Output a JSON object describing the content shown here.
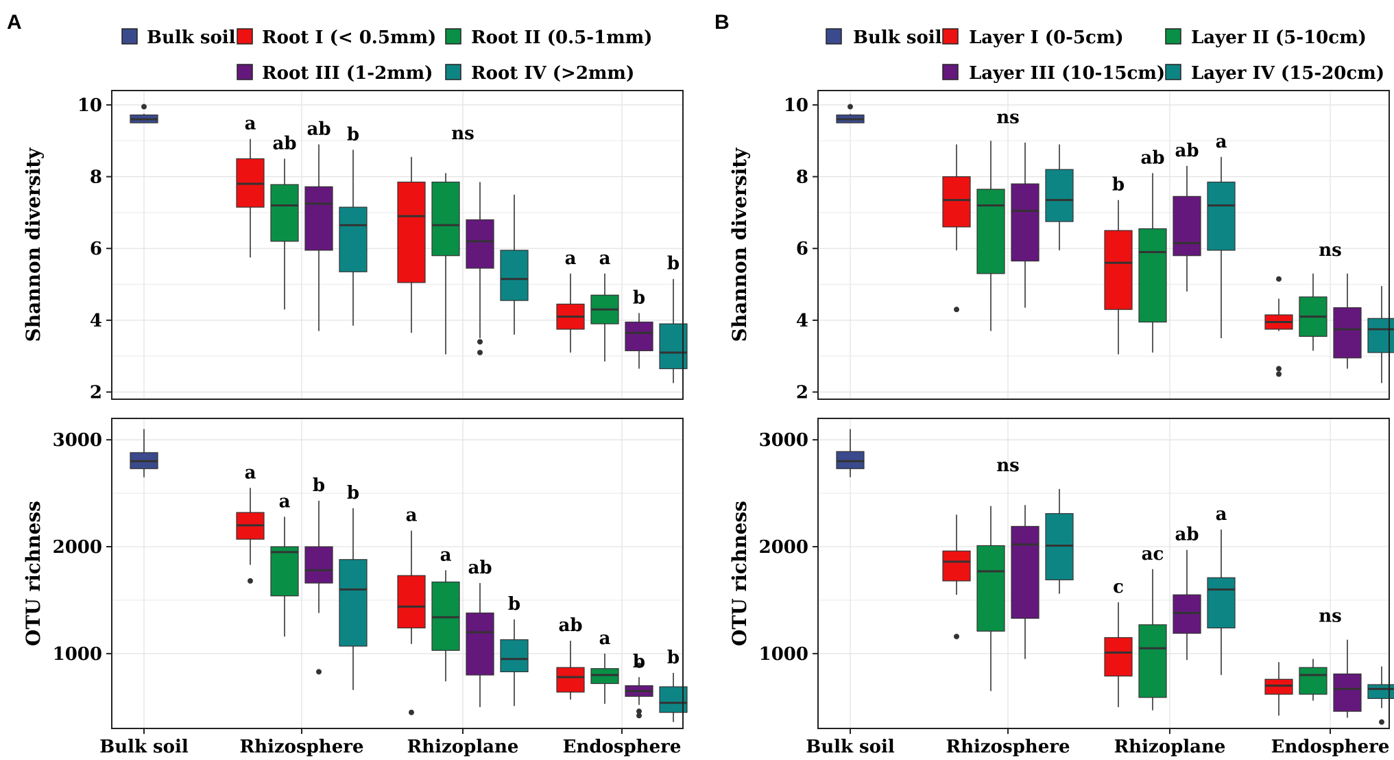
{
  "colors": {
    "bulk": "#3b4a8c",
    "I": "#ee1111",
    "II": "#0a8f47",
    "III": "#65187c",
    "IV": "#0e8585",
    "median": "#333333",
    "outlier": "#333333",
    "whisker": "#333333"
  },
  "panels": [
    {
      "letter": "A",
      "legend": [
        {
          "key": "bulk",
          "label": "Bulk soil"
        },
        {
          "key": "I",
          "label": "Root I (< 0.5mm)"
        },
        {
          "key": "II",
          "label": "Root II (0.5-1mm)"
        },
        {
          "key": "III",
          "label": "Root III (1-2mm)"
        },
        {
          "key": "IV",
          "label": "Root IV (>2mm)"
        }
      ],
      "xlabels": [
        "Bulk soil",
        "Rhizosphere",
        "Rhizoplane",
        "Endosphere"
      ]
    },
    {
      "letter": "B",
      "legend": [
        {
          "key": "bulk",
          "label": "Bulk soil"
        },
        {
          "key": "I",
          "label": "Layer I (0-5cm)"
        },
        {
          "key": "II",
          "label": "Layer II (5-10cm)"
        },
        {
          "key": "III",
          "label": "Layer III (10-15cm)"
        },
        {
          "key": "IV",
          "label": "Layer IV (15-20cm)"
        }
      ],
      "xlabels": [
        "Bulk soil",
        "Rhizosphere",
        "Rhizoplane",
        "Endosphere"
      ]
    }
  ],
  "chart_data": [
    {
      "type": "boxplot",
      "panel": "A",
      "title": "",
      "xlabel": "",
      "ylabel": "Shannon diversity",
      "ylim": [
        1.8,
        10.4
      ],
      "yticks": [
        2,
        4,
        6,
        8,
        10
      ],
      "categories": [
        "Bulk soil",
        "Rhizosphere",
        "Rhizoplane",
        "Endosphere"
      ],
      "boxes": [
        {
          "group": "Bulk soil",
          "series": "bulk",
          "min": 9.5,
          "q1": 9.5,
          "median": 9.6,
          "q3": 9.72,
          "max": 9.75,
          "outliers": [
            9.95
          ]
        },
        {
          "group": "Rhizosphere",
          "series": "I",
          "min": 5.75,
          "q1": 7.15,
          "median": 7.8,
          "q3": 8.5,
          "max": 9.05,
          "outliers": [],
          "label": "a"
        },
        {
          "group": "Rhizosphere",
          "series": "II",
          "min": 4.3,
          "q1": 6.2,
          "median": 7.2,
          "q3": 7.78,
          "max": 8.5,
          "outliers": [],
          "label": "ab"
        },
        {
          "group": "Rhizosphere",
          "series": "III",
          "min": 3.7,
          "q1": 5.95,
          "median": 7.25,
          "q3": 7.72,
          "max": 8.9,
          "outliers": [],
          "label": "ab"
        },
        {
          "group": "Rhizosphere",
          "series": "IV",
          "min": 3.85,
          "q1": 5.35,
          "median": 6.65,
          "q3": 7.15,
          "max": 8.75,
          "outliers": [],
          "label": "b"
        },
        {
          "group": "Rhizoplane",
          "series": "I",
          "min": 3.65,
          "q1": 5.05,
          "median": 6.9,
          "q3": 7.85,
          "max": 8.55,
          "outliers": []
        },
        {
          "group": "Rhizoplane",
          "series": "II",
          "min": 3.05,
          "q1": 5.8,
          "median": 6.65,
          "q3": 7.85,
          "max": 8.1,
          "outliers": []
        },
        {
          "group": "Rhizoplane",
          "series": "III",
          "min": 3.5,
          "q1": 5.45,
          "median": 6.2,
          "q3": 6.8,
          "max": 7.85,
          "outliers": [
            3.4,
            3.1
          ]
        },
        {
          "group": "Rhizoplane",
          "series": "IV",
          "min": 3.6,
          "q1": 4.55,
          "median": 5.15,
          "q3": 5.95,
          "max": 7.5,
          "outliers": []
        },
        {
          "group": "Endosphere",
          "series": "I",
          "min": 3.1,
          "q1": 3.75,
          "median": 4.1,
          "q3": 4.45,
          "max": 5.3,
          "outliers": [],
          "label": "a"
        },
        {
          "group": "Endosphere",
          "series": "II",
          "min": 2.85,
          "q1": 3.9,
          "median": 4.3,
          "q3": 4.7,
          "max": 5.3,
          "outliers": [],
          "label": "a"
        },
        {
          "group": "Endosphere",
          "series": "III",
          "min": 2.65,
          "q1": 3.15,
          "median": 3.65,
          "q3": 3.95,
          "max": 4.2,
          "outliers": [],
          "label": "b"
        },
        {
          "group": "Endosphere",
          "series": "IV",
          "min": 2.25,
          "q1": 2.65,
          "median": 3.1,
          "q3": 3.9,
          "max": 5.15,
          "outliers": [],
          "label": "b"
        }
      ],
      "group_labels": [
        {
          "group": "Rhizoplane",
          "text": "ns"
        }
      ]
    },
    {
      "type": "boxplot",
      "panel": "A",
      "title": "",
      "xlabel": "",
      "ylabel": "OTU richness",
      "ylim": [
        300,
        3200
      ],
      "yticks": [
        1000,
        2000,
        3000
      ],
      "categories": [
        "Bulk soil",
        "Rhizosphere",
        "Rhizoplane",
        "Endosphere"
      ],
      "boxes": [
        {
          "group": "Bulk soil",
          "series": "bulk",
          "min": 2650,
          "q1": 2730,
          "median": 2800,
          "q3": 2880,
          "max": 3100,
          "outliers": []
        },
        {
          "group": "Rhizosphere",
          "series": "I",
          "min": 1830,
          "q1": 2070,
          "median": 2200,
          "q3": 2320,
          "max": 2550,
          "outliers": [
            1680
          ],
          "label": "a"
        },
        {
          "group": "Rhizosphere",
          "series": "II",
          "min": 1160,
          "q1": 1540,
          "median": 1950,
          "q3": 2000,
          "max": 2280,
          "outliers": [],
          "label": "a"
        },
        {
          "group": "Rhizosphere",
          "series": "III",
          "min": 1380,
          "q1": 1660,
          "median": 1780,
          "q3": 2000,
          "max": 2430,
          "outliers": [
            830
          ],
          "label": "b"
        },
        {
          "group": "Rhizosphere",
          "series": "IV",
          "min": 660,
          "q1": 1070,
          "median": 1600,
          "q3": 1880,
          "max": 2360,
          "outliers": [],
          "label": "b"
        },
        {
          "group": "Rhizoplane",
          "series": "I",
          "min": 1090,
          "q1": 1240,
          "median": 1440,
          "q3": 1730,
          "max": 2150,
          "outliers": [
            450
          ],
          "label": "a"
        },
        {
          "group": "Rhizoplane",
          "series": "II",
          "min": 740,
          "q1": 1030,
          "median": 1340,
          "q3": 1670,
          "max": 1780,
          "outliers": [],
          "label": "a"
        },
        {
          "group": "Rhizoplane",
          "series": "III",
          "min": 500,
          "q1": 800,
          "median": 1200,
          "q3": 1380,
          "max": 1660,
          "outliers": [],
          "label": "ab"
        },
        {
          "group": "Rhizoplane",
          "series": "IV",
          "min": 510,
          "q1": 830,
          "median": 950,
          "q3": 1130,
          "max": 1320,
          "outliers": [],
          "label": "b"
        },
        {
          "group": "Endosphere",
          "series": "I",
          "min": 570,
          "q1": 640,
          "median": 780,
          "q3": 870,
          "max": 1120,
          "outliers": [],
          "label": "ab"
        },
        {
          "group": "Endosphere",
          "series": "II",
          "min": 530,
          "q1": 720,
          "median": 800,
          "q3": 860,
          "max": 1000,
          "outliers": [],
          "label": "a"
        },
        {
          "group": "Endosphere",
          "series": "III",
          "min": 520,
          "q1": 600,
          "median": 650,
          "q3": 700,
          "max": 780,
          "outliers": [
            890,
            460,
            420
          ],
          "label": "b"
        },
        {
          "group": "Endosphere",
          "series": "IV",
          "min": 360,
          "q1": 450,
          "median": 540,
          "q3": 690,
          "max": 820,
          "outliers": [],
          "label": "b"
        }
      ],
      "group_labels": []
    },
    {
      "type": "boxplot",
      "panel": "B",
      "title": "",
      "xlabel": "",
      "ylabel": "Shannon diversity",
      "ylim": [
        1.8,
        10.4
      ],
      "yticks": [
        2,
        4,
        6,
        8,
        10
      ],
      "categories": [
        "Bulk soil",
        "Rhizosphere",
        "Rhizoplane",
        "Endosphere"
      ],
      "boxes": [
        {
          "group": "Bulk soil",
          "series": "bulk",
          "min": 9.5,
          "q1": 9.5,
          "median": 9.6,
          "q3": 9.72,
          "max": 9.75,
          "outliers": [
            9.95
          ]
        },
        {
          "group": "Rhizosphere",
          "series": "I",
          "min": 5.95,
          "q1": 6.6,
          "median": 7.35,
          "q3": 8.0,
          "max": 8.9,
          "outliers": [
            4.3
          ]
        },
        {
          "group": "Rhizosphere",
          "series": "II",
          "min": 3.7,
          "q1": 5.3,
          "median": 7.2,
          "q3": 7.65,
          "max": 9.0,
          "outliers": []
        },
        {
          "group": "Rhizosphere",
          "series": "III",
          "min": 4.35,
          "q1": 5.65,
          "median": 7.05,
          "q3": 7.8,
          "max": 8.95,
          "outliers": []
        },
        {
          "group": "Rhizosphere",
          "series": "IV",
          "min": 5.95,
          "q1": 6.75,
          "median": 7.35,
          "q3": 8.2,
          "max": 8.9,
          "outliers": []
        },
        {
          "group": "Rhizoplane",
          "series": "I",
          "min": 3.05,
          "q1": 4.3,
          "median": 5.6,
          "q3": 6.5,
          "max": 7.35,
          "outliers": [],
          "label": "b"
        },
        {
          "group": "Rhizoplane",
          "series": "II",
          "min": 3.1,
          "q1": 3.95,
          "median": 5.9,
          "q3": 6.55,
          "max": 8.1,
          "outliers": [],
          "label": "ab"
        },
        {
          "group": "Rhizoplane",
          "series": "III",
          "min": 4.8,
          "q1": 5.8,
          "median": 6.15,
          "q3": 7.45,
          "max": 8.3,
          "outliers": [],
          "label": "ab"
        },
        {
          "group": "Rhizoplane",
          "series": "IV",
          "min": 3.5,
          "q1": 5.95,
          "median": 7.2,
          "q3": 7.85,
          "max": 8.55,
          "outliers": [],
          "label": "a"
        },
        {
          "group": "Endosphere",
          "series": "I",
          "min": 3.7,
          "q1": 3.75,
          "median": 3.95,
          "q3": 4.15,
          "max": 4.6,
          "outliers": [
            5.15,
            2.65,
            2.5
          ]
        },
        {
          "group": "Endosphere",
          "series": "II",
          "min": 3.15,
          "q1": 3.55,
          "median": 4.1,
          "q3": 4.65,
          "max": 5.3,
          "outliers": []
        },
        {
          "group": "Endosphere",
          "series": "III",
          "min": 2.65,
          "q1": 2.95,
          "median": 3.75,
          "q3": 4.35,
          "max": 5.3,
          "outliers": []
        },
        {
          "group": "Endosphere",
          "series": "IV",
          "min": 2.25,
          "q1": 3.1,
          "median": 3.75,
          "q3": 4.05,
          "max": 4.95,
          "outliers": []
        }
      ],
      "group_labels": [
        {
          "group": "Rhizosphere",
          "text": "ns"
        },
        {
          "group": "Endosphere",
          "text": "ns"
        }
      ]
    },
    {
      "type": "boxplot",
      "panel": "B",
      "title": "",
      "xlabel": "",
      "ylabel": "OTU richness",
      "ylim": [
        300,
        3200
      ],
      "yticks": [
        1000,
        2000,
        3000
      ],
      "categories": [
        "Bulk soil",
        "Rhizosphere",
        "Rhizoplane",
        "Endosphere"
      ],
      "boxes": [
        {
          "group": "Bulk soil",
          "series": "bulk",
          "min": 2650,
          "q1": 2730,
          "median": 2800,
          "q3": 2890,
          "max": 3100,
          "outliers": []
        },
        {
          "group": "Rhizosphere",
          "series": "I",
          "min": 1550,
          "q1": 1680,
          "median": 1860,
          "q3": 1960,
          "max": 2300,
          "outliers": [
            1160
          ]
        },
        {
          "group": "Rhizosphere",
          "series": "II",
          "min": 650,
          "q1": 1210,
          "median": 1770,
          "q3": 2010,
          "max": 2380,
          "outliers": []
        },
        {
          "group": "Rhizosphere",
          "series": "III",
          "min": 950,
          "q1": 1330,
          "median": 2020,
          "q3": 2190,
          "max": 2390,
          "outliers": []
        },
        {
          "group": "Rhizosphere",
          "series": "IV",
          "min": 1560,
          "q1": 1690,
          "median": 2010,
          "q3": 2310,
          "max": 2540,
          "outliers": []
        },
        {
          "group": "Rhizoplane",
          "series": "I",
          "min": 500,
          "q1": 790,
          "median": 1010,
          "q3": 1150,
          "max": 1480,
          "outliers": [],
          "label": "c"
        },
        {
          "group": "Rhizoplane",
          "series": "II",
          "min": 470,
          "q1": 590,
          "median": 1050,
          "q3": 1270,
          "max": 1790,
          "outliers": [],
          "label": "ac"
        },
        {
          "group": "Rhizoplane",
          "series": "III",
          "min": 940,
          "q1": 1190,
          "median": 1380,
          "q3": 1550,
          "max": 1970,
          "outliers": [],
          "label": "ab"
        },
        {
          "group": "Rhizoplane",
          "series": "IV",
          "min": 800,
          "q1": 1240,
          "median": 1600,
          "q3": 1710,
          "max": 2160,
          "outliers": [],
          "label": "a"
        },
        {
          "group": "Endosphere",
          "series": "I",
          "min": 420,
          "q1": 620,
          "median": 700,
          "q3": 760,
          "max": 920,
          "outliers": []
        },
        {
          "group": "Endosphere",
          "series": "II",
          "min": 560,
          "q1": 620,
          "median": 800,
          "q3": 870,
          "max": 950,
          "outliers": []
        },
        {
          "group": "Endosphere",
          "series": "III",
          "min": 400,
          "q1": 460,
          "median": 670,
          "q3": 810,
          "max": 1130,
          "outliers": []
        },
        {
          "group": "Endosphere",
          "series": "IV",
          "min": 490,
          "q1": 580,
          "median": 670,
          "q3": 710,
          "max": 880,
          "outliers": [
            360
          ]
        }
      ],
      "group_labels": [
        {
          "group": "Rhizosphere",
          "text": "ns"
        },
        {
          "group": "Endosphere",
          "text": "ns"
        }
      ]
    }
  ]
}
